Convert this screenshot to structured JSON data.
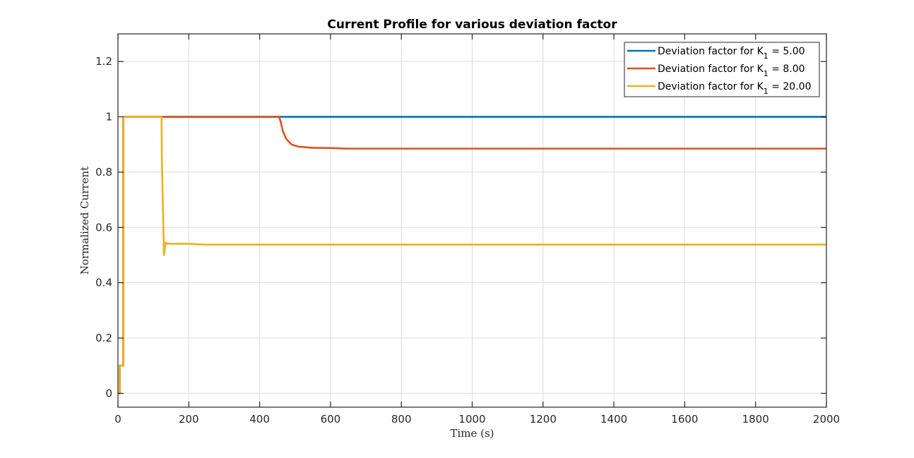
{
  "chart_data": {
    "type": "line",
    "title": "Current Profile for various deviation factor",
    "xlabel": "Time (s)",
    "ylabel": "Normalized Current",
    "xlim": [
      0,
      2000
    ],
    "ylim": [
      -0.05,
      1.3
    ],
    "xticks": [
      0,
      200,
      400,
      600,
      800,
      1000,
      1200,
      1400,
      1600,
      1800,
      2000
    ],
    "yticks": [
      0,
      0.2,
      0.4,
      0.6,
      0.8,
      1,
      1.2
    ],
    "ytick_labels": [
      "0",
      "0.2",
      "0.4",
      "0.6",
      "0.8",
      "1",
      "1.2"
    ],
    "grid": true,
    "legend_position": "top-right",
    "series": [
      {
        "name": "Deviation factor for K₁ = 5.00",
        "legend_main": "Deviation factor for K",
        "legend_sub": "1",
        "legend_tail": " = 5.00",
        "color": "#0072BD",
        "x": [
          0,
          5,
          5,
          15,
          15,
          2000
        ],
        "y": [
          0,
          0,
          0.1,
          0.1,
          1,
          1
        ]
      },
      {
        "name": "Deviation factor for K₁ = 8.00",
        "legend_main": "Deviation factor for K",
        "legend_sub": "1",
        "legend_tail": " = 8.00",
        "color": "#D95319",
        "x": [
          0,
          5,
          5,
          15,
          15,
          455,
          460,
          465,
          475,
          490,
          510,
          550,
          600,
          650,
          2000
        ],
        "y": [
          0,
          0,
          0.1,
          0.1,
          1,
          1,
          0.98,
          0.95,
          0.92,
          0.9,
          0.892,
          0.888,
          0.887,
          0.885,
          0.885
        ]
      },
      {
        "name": "Deviation factor for K₁ = 20.00",
        "legend_main": "Deviation factor for K",
        "legend_sub": "1",
        "legend_tail": " = 20.00",
        "color": "#EDB120",
        "x": [
          0,
          5,
          5,
          15,
          15,
          123,
          124,
          127,
          130,
          132,
          134,
          137,
          140,
          150,
          200,
          240,
          2000
        ],
        "y": [
          0,
          0,
          0.1,
          0.1,
          1,
          1,
          0.85,
          0.67,
          0.5,
          0.52,
          0.545,
          0.54,
          0.542,
          0.541,
          0.541,
          0.538,
          0.538
        ]
      }
    ]
  }
}
